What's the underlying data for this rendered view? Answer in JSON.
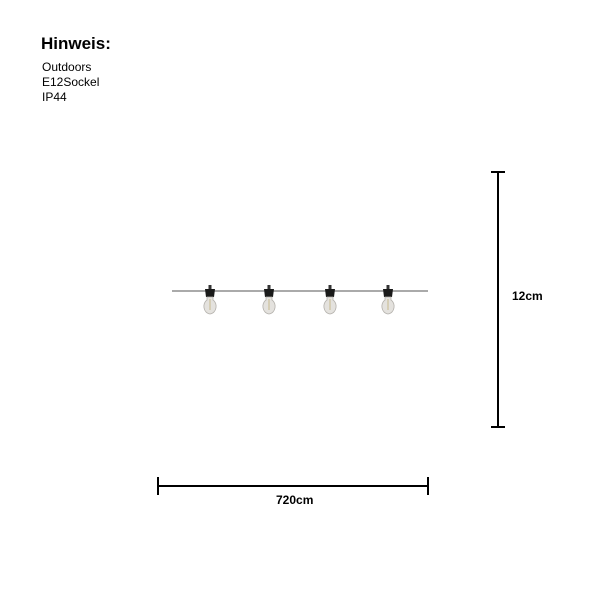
{
  "heading": "Hinweis:",
  "notes": [
    "Outdoors",
    "E12Sockel",
    "IP44"
  ],
  "dimensions": {
    "height": "12cm",
    "width": "720cm"
  },
  "bulb_count": 4
}
